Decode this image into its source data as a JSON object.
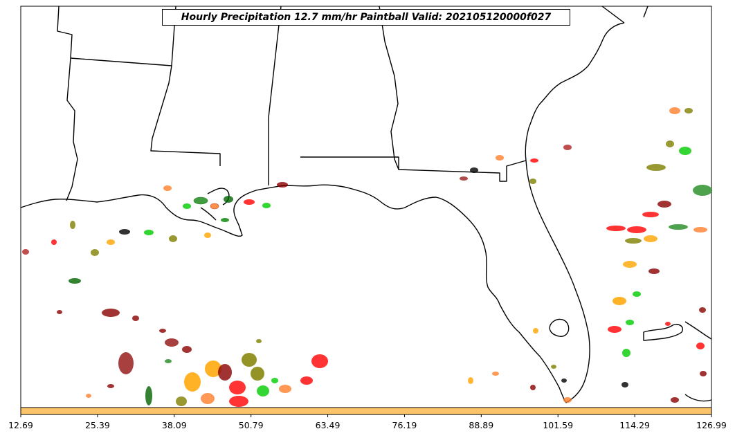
{
  "title": "Hourly Precipitation 12.7 mm/hr Paintball Valid: 202105120000f027",
  "colorbar": {
    "ticks": [
      "12.69",
      "25.39",
      "38.09",
      "50.79",
      "63.49",
      "76.19",
      "88.89",
      "101.59",
      "114.29",
      "126.99"
    ],
    "fill_color": "#fdc36a"
  },
  "map": {
    "background": "#ffffff",
    "coastline_color": "#000000",
    "paintball_colors": [
      "#8b0000",
      "#ff0000",
      "#ff7f2a",
      "#ffa500",
      "#808000",
      "#006400",
      "#228b22",
      "#00cc00",
      "#000000",
      "#b22222"
    ]
  }
}
